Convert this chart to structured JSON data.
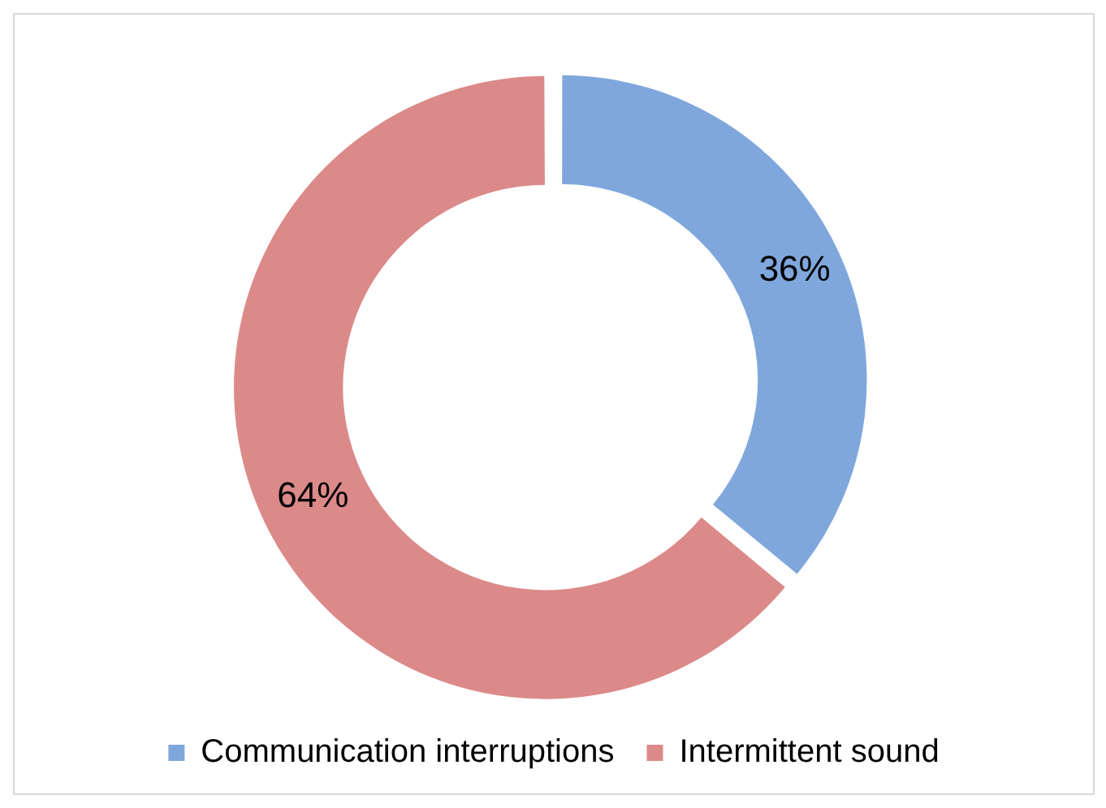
{
  "chart_data": {
    "type": "donut",
    "categories": [
      "Communication interruptions",
      "Intermittent sound"
    ],
    "values": [
      36,
      64
    ],
    "colors": [
      "#7fa7dc",
      "#db8a89"
    ],
    "value_labels": [
      "36%",
      "64%"
    ],
    "legend": "bottom"
  }
}
